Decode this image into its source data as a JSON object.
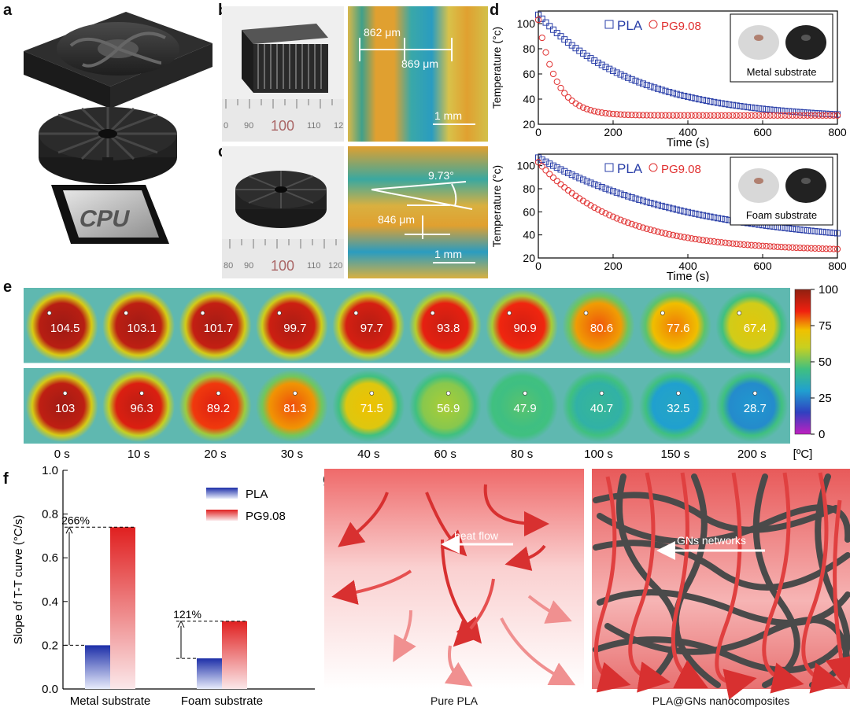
{
  "panels": {
    "a": {
      "label": "a",
      "cpu_text": "CPU"
    },
    "b": {
      "label": "b",
      "ruler_ticks": [
        "0",
        "90",
        "100",
        "110",
        "12"
      ],
      "meas1": "862 μm",
      "meas2": "869 μm",
      "scale": "1 mm"
    },
    "c": {
      "label": "c",
      "ruler_ticks": [
        "80",
        "90",
        "100",
        "110",
        "120"
      ],
      "angle": "9.73°",
      "meas": "846 μm",
      "scale": "1 mm"
    },
    "d": {
      "label": "d"
    },
    "e": {
      "label": "e"
    },
    "f": {
      "label": "f"
    },
    "g": {
      "label": "g"
    }
  },
  "chart_data": [
    {
      "id": "d-top",
      "type": "scatter",
      "xlabel": "Time (s)",
      "ylabel": "Temperature (°c)",
      "xlim": [
        0,
        800
      ],
      "ylim": [
        20,
        110
      ],
      "xticks": [
        "0",
        "200",
        "400",
        "600",
        "800"
      ],
      "yticks": [
        "20",
        "40",
        "60",
        "80",
        "100"
      ],
      "legend": [
        "PLA",
        "PG9.08"
      ],
      "inset_label": "Metal substrate",
      "series": [
        {
          "name": "PLA",
          "color": "#2a3fa8",
          "marker": "square",
          "T0": 107,
          "Tinf": 24,
          "tau": 260
        },
        {
          "name": "PG9.08",
          "color": "#e03030",
          "marker": "circle",
          "T0": 103,
          "Tinf": 27,
          "tau": 48
        }
      ]
    },
    {
      "id": "d-bottom",
      "type": "scatter",
      "xlabel": "Time (s)",
      "ylabel": "Temperature (°c)",
      "xlim": [
        0,
        800
      ],
      "ylim": [
        20,
        110
      ],
      "xticks": [
        "0",
        "200",
        "400",
        "600",
        "800"
      ],
      "yticks": [
        "20",
        "40",
        "60",
        "80",
        "100"
      ],
      "legend": [
        "PLA",
        "PG9.08"
      ],
      "inset_label": "Foam substrate",
      "series": [
        {
          "name": "PLA",
          "color": "#2a3fa8",
          "marker": "square",
          "T0": 107,
          "Tinf": 30,
          "tau": 420
        },
        {
          "name": "PG9.08",
          "color": "#e03030",
          "marker": "circle",
          "T0": 103,
          "Tinf": 26,
          "tau": 210
        }
      ]
    },
    {
      "id": "e-thermal",
      "type": "heatmap",
      "colorbar_ticks": [
        "100",
        "75",
        "50",
        "25",
        "0"
      ],
      "colorbar_unit": "[ºC]",
      "times": [
        "0 s",
        "10 s",
        "20 s",
        "30 s",
        "40 s",
        "60 s",
        "80 s",
        "100 s",
        "150 s",
        "200 s"
      ],
      "row_metal": [
        104.5,
        103.1,
        101.7,
        99.7,
        97.7,
        93.8,
        90.9,
        80.6,
        77.6,
        67.4
      ],
      "row_foam": [
        103,
        96.3,
        89.2,
        81.3,
        71.5,
        56.9,
        47.9,
        40.7,
        32.5,
        28.7
      ],
      "row_metal_labels": [
        "104.5",
        "103.1",
        "101.7",
        "99.7",
        "97.7",
        "93.8",
        "90.9",
        "80.6",
        "77.6",
        "67.4"
      ],
      "row_foam_labels": [
        "103",
        "96.3",
        "89.2",
        "81.3",
        "71.5",
        "56.9",
        "47.9",
        "40.7",
        "32.5",
        "28.7"
      ]
    },
    {
      "id": "f-bar",
      "type": "bar",
      "ylabel": "Slope of T-T curve (°C/s)",
      "ylim": [
        0,
        1.0
      ],
      "yticks": [
        "0.0",
        "0.2",
        "0.4",
        "0.6",
        "0.8",
        "1.0"
      ],
      "categories": [
        "Metal substrate",
        "Foam substrate"
      ],
      "series": [
        {
          "name": "PLA",
          "values": [
            0.2,
            0.14
          ]
        },
        {
          "name": "PG9.08",
          "values": [
            0.74,
            0.31
          ]
        }
      ],
      "annotations": [
        "266%",
        "121%"
      ]
    }
  ],
  "panel_g": {
    "left_caption": "Pure PLA",
    "left_arrow_label": "heat flow",
    "right_caption": "PLA@GNs nanocomposites",
    "right_arrow_label": "GNs networks"
  }
}
